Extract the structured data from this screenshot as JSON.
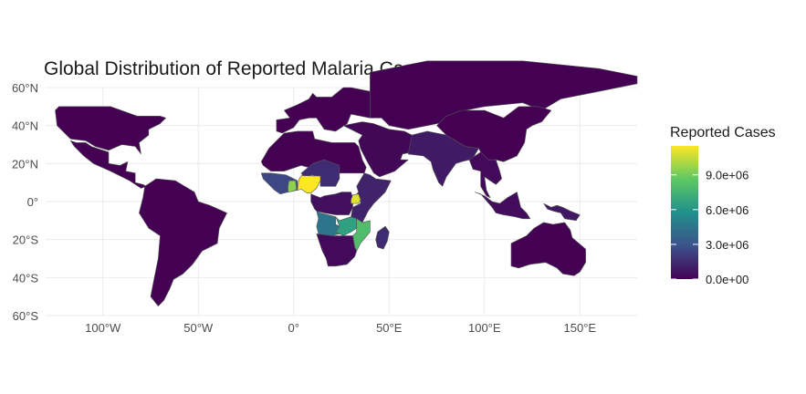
{
  "title": "Global Distribution of Reported Malaria Cases",
  "x_ticks": [
    "100°W",
    "50°W",
    "0°",
    "50°E",
    "100°E",
    "150°E"
  ],
  "y_ticks": [
    "60°N",
    "40°N",
    "20°N",
    "0°",
    "20°S",
    "40°S",
    "60°S"
  ],
  "legend": {
    "title": "Reported Cases",
    "ticks": [
      "0.0e+00",
      "3.0e+06",
      "6.0e+06",
      "9.0e+06"
    ]
  },
  "colors": {
    "background": "#ffffff",
    "grid": "#ebebeb",
    "border": "#555555",
    "scale": [
      "#440154",
      "#3b528b",
      "#21908c",
      "#5dc863",
      "#fde725"
    ]
  },
  "chart_data": {
    "type": "choropleth",
    "title": "Global Distribution of Reported Malaria Cases",
    "fill_variable": "Reported Cases",
    "scale": "viridis",
    "scale_max": 11500000,
    "xlim": [
      -130,
      180
    ],
    "ylim": [
      -60,
      60
    ],
    "regions": [
      {
        "id": "north-america",
        "value": 0
      },
      {
        "id": "central-america",
        "value": 0
      },
      {
        "id": "south-america",
        "value": 0
      },
      {
        "id": "europe",
        "value": 0
      },
      {
        "id": "north-africa",
        "value": 0
      },
      {
        "id": "west-africa",
        "value": 2500000
      },
      {
        "id": "sahel",
        "value": 1500000
      },
      {
        "id": "nigeria",
        "value": 11500000
      },
      {
        "id": "ghana-area",
        "value": 9500000
      },
      {
        "id": "central-africa",
        "value": 500000
      },
      {
        "id": "east-africa",
        "value": 1200000
      },
      {
        "id": "uganda",
        "value": 11000000
      },
      {
        "id": "angola",
        "value": 4500000
      },
      {
        "id": "zambia",
        "value": 6500000
      },
      {
        "id": "mozambique",
        "value": 8000000
      },
      {
        "id": "southern-africa",
        "value": 300000
      },
      {
        "id": "madagascar",
        "value": 1500000
      },
      {
        "id": "middle-east",
        "value": 200000
      },
      {
        "id": "russia-central-asia",
        "value": 0
      },
      {
        "id": "south-asia",
        "value": 900000
      },
      {
        "id": "china-east-asia",
        "value": 0
      },
      {
        "id": "southeast-asia",
        "value": 300000
      },
      {
        "id": "indonesia",
        "value": 400000
      },
      {
        "id": "papua",
        "value": 800000
      },
      {
        "id": "australia-oceania",
        "value": 0
      }
    ]
  }
}
